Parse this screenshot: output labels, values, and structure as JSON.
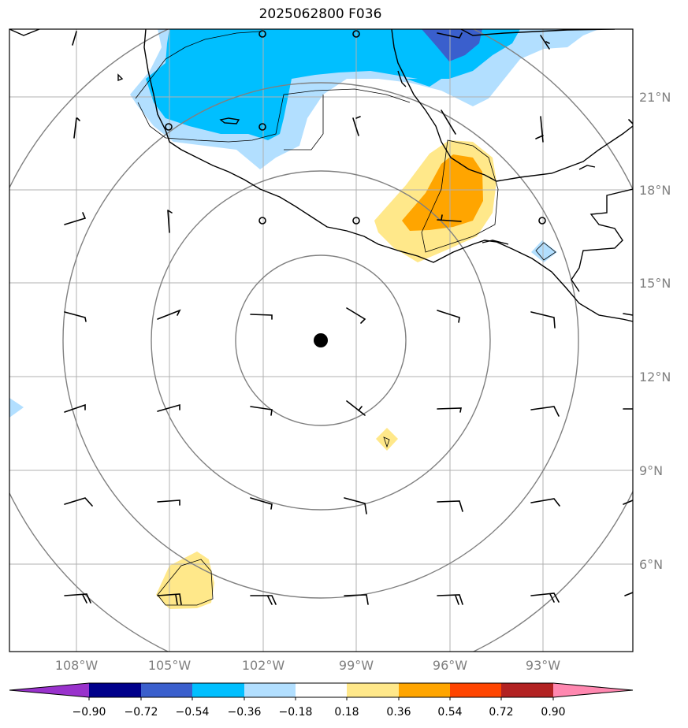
{
  "title": "2025062800 F036",
  "map": {
    "lon_labels": [
      "108°W",
      "105°W",
      "102°W",
      "99°W",
      "96°W",
      "93°W"
    ],
    "lat_labels": [
      "21°N",
      "18°N",
      "15°N",
      "12°N",
      "9°N",
      "6°N"
    ],
    "center_marker": "storm-center-dot",
    "range_rings": 4
  },
  "colorbar": {
    "labels": [
      "−0.90",
      "−0.72",
      "−0.54",
      "−0.36",
      "−0.18",
      "0.18",
      "0.36",
      "0.54",
      "0.72",
      "0.90"
    ],
    "colors": [
      "#9932cc",
      "#00008b",
      "#3a5fcd",
      "#00bfff",
      "#b2dfff",
      "#ffffff",
      "#ffe88a",
      "#ffa500",
      "#ff4500",
      "#b22222",
      "#ff88b0"
    ]
  },
  "palette": {
    "gridline": "#b0b0b0",
    "ring": "#808080",
    "coast": "#000000"
  }
}
